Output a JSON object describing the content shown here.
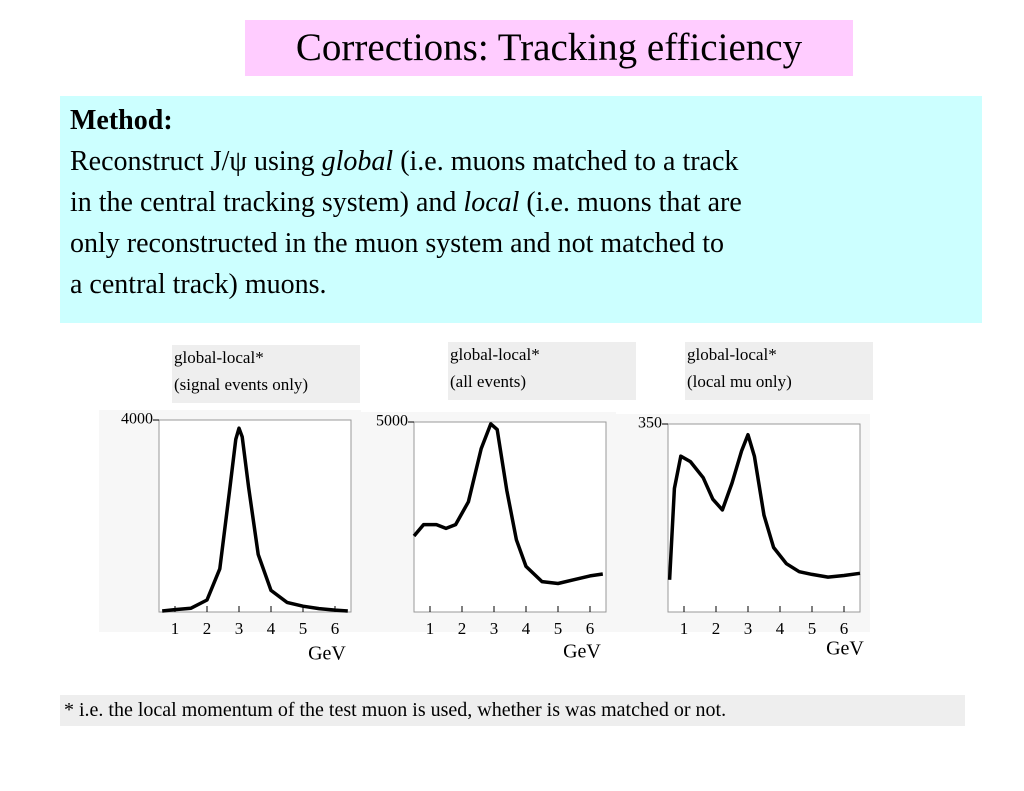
{
  "title": "Corrections: Tracking efficiency",
  "method": {
    "heading": "Method:",
    "lines": [
      [
        "Reconstruct J/ψ using ",
        "global",
        " (i.e. muons matched to a track"
      ],
      [
        "in the central tracking system) and ",
        "local",
        " (i.e. muons that are"
      ],
      [
        "only reconstructed  in the  muon system and not matched to"
      ],
      [
        "a central track) muons."
      ]
    ]
  },
  "chart_data": [
    {
      "type": "line",
      "caption": [
        "global-local*",
        "(signal events only)"
      ],
      "x_label": "GeV",
      "x": [
        0.6,
        1.0,
        1.5,
        2.0,
        2.4,
        2.7,
        2.9,
        3.0,
        3.1,
        3.3,
        3.6,
        4.0,
        4.5,
        5.0,
        5.5,
        6.0,
        6.4
      ],
      "values": [
        20,
        50,
        80,
        250,
        900,
        2500,
        3600,
        3830,
        3650,
        2600,
        1200,
        450,
        200,
        120,
        70,
        40,
        20
      ],
      "xlim": [
        0.5,
        6.5
      ],
      "ylim": [
        0,
        4000
      ],
      "xticks": [
        1,
        2,
        3,
        4,
        5,
        6
      ],
      "yticks": [
        4000
      ],
      "color": "#000000"
    },
    {
      "type": "line",
      "caption": [
        "global-local*",
        "(all events)"
      ],
      "x_label": "GeV",
      "x": [
        0.5,
        0.8,
        1.2,
        1.5,
        1.8,
        2.2,
        2.6,
        2.9,
        3.1,
        3.4,
        3.7,
        4.0,
        4.5,
        5.0,
        5.5,
        6.0,
        6.4
      ],
      "values": [
        2000,
        2300,
        2300,
        2200,
        2300,
        2900,
        4300,
        4950,
        4800,
        3200,
        1900,
        1200,
        800,
        750,
        850,
        950,
        1000
      ],
      "xlim": [
        0.5,
        6.5
      ],
      "ylim": [
        0,
        5000
      ],
      "xticks": [
        1,
        2,
        3,
        4,
        5,
        6
      ],
      "yticks": [
        5000
      ],
      "color": "#000000"
    },
    {
      "type": "line",
      "caption": [
        "global-local*",
        "(local mu only)"
      ],
      "x_label": "GeV",
      "x": [
        0.55,
        0.7,
        0.9,
        1.2,
        1.6,
        1.9,
        2.2,
        2.5,
        2.8,
        3.0,
        3.2,
        3.5,
        3.8,
        4.2,
        4.6,
        5.0,
        5.5,
        6.0,
        6.5
      ],
      "values": [
        60,
        230,
        290,
        280,
        250,
        210,
        190,
        240,
        300,
        330,
        290,
        180,
        120,
        90,
        75,
        70,
        65,
        68,
        72
      ],
      "xlim": [
        0.5,
        6.5
      ],
      "ylim": [
        0,
        350
      ],
      "xticks": [
        1,
        2,
        3,
        4,
        5,
        6
      ],
      "yticks": [
        350
      ],
      "color": "#000000"
    }
  ],
  "footnote": "* i.e. the local momentum of the test  muon is used, whether is was matched or not."
}
